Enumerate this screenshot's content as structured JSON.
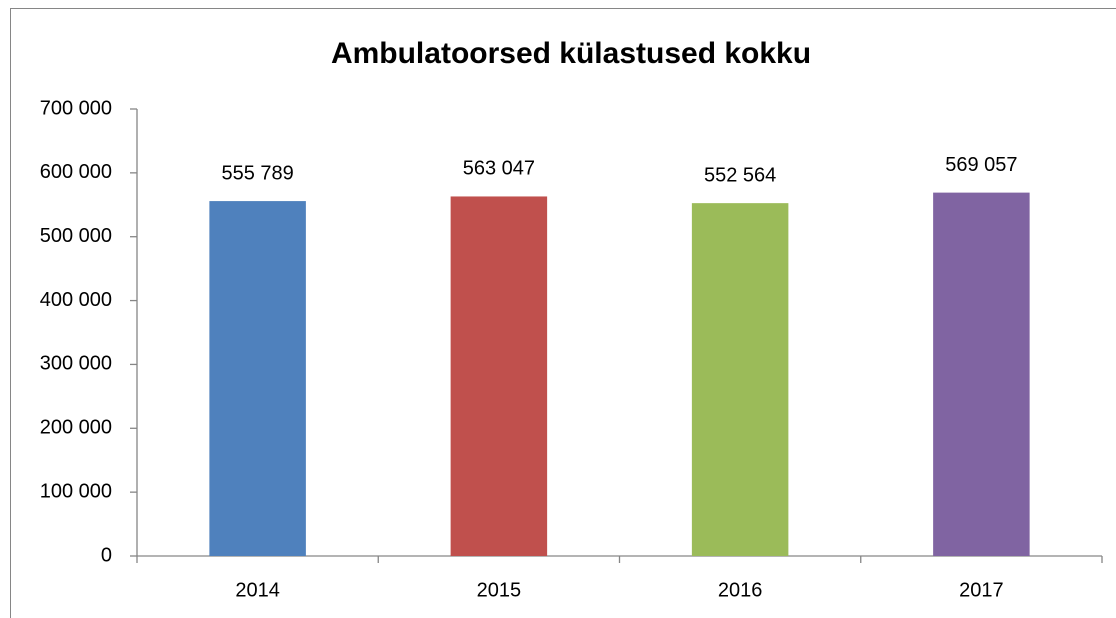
{
  "chart_data": {
    "type": "bar",
    "title": "Ambulatoorsed külastused kokku",
    "categories": [
      "2014",
      "2015",
      "2016",
      "2017"
    ],
    "values": [
      555789,
      563047,
      552564,
      569057
    ],
    "value_labels": [
      "555 789",
      "563 047",
      "552 564",
      "569 057"
    ],
    "colors": [
      "#4f81bd",
      "#c0504d",
      "#9bbb59",
      "#8064a2"
    ],
    "ylim": [
      0,
      700000
    ],
    "yticks": [
      0,
      {
        "value": 100000,
        "label": "100 000"
      },
      {
        "value": 200000,
        "label": "200 000"
      },
      {
        "value": 300000,
        "label": "300 000"
      },
      {
        "value": 400000,
        "label": "400 000"
      },
      {
        "value": 500000,
        "label": "500 000"
      },
      {
        "value": 600000,
        "label": "600 000"
      },
      {
        "value": 700000,
        "label": "700 000"
      }
    ],
    "grid": false
  }
}
